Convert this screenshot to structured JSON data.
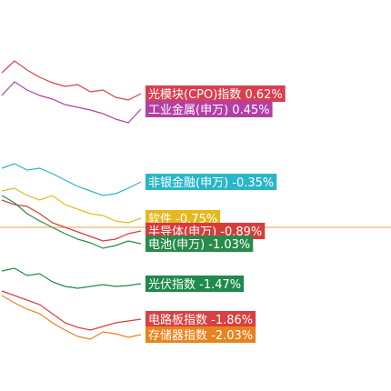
{
  "chart_data": {
    "type": "line",
    "ylim": [
      -2.65,
      1.65
    ],
    "reference_line": -0.85,
    "reference_color": "#e8a23a",
    "x": [
      0,
      1,
      2,
      3,
      4,
      5,
      6,
      7,
      8,
      9,
      10,
      11
    ],
    "series": [
      {
        "name": "光模块(CPO)指数",
        "value_labels": "0.62%",
        "color": "#d9404f",
        "values": [
          0.85,
          0.98,
          0.88,
          0.8,
          0.74,
          0.7,
          0.72,
          0.64,
          0.66,
          0.58,
          0.55,
          0.62
        ]
      },
      {
        "name": "工业金属(申万)",
        "value_labels": "0.45%",
        "color": "#b33fa6",
        "values": [
          0.6,
          0.75,
          0.66,
          0.6,
          0.56,
          0.5,
          0.47,
          0.44,
          0.4,
          0.34,
          0.3,
          0.45
        ]
      },
      {
        "name": "非银金融(申万)",
        "value_labels": "-0.35%",
        "color": "#2bb5c9",
        "values": [
          -0.2,
          -0.15,
          -0.22,
          -0.2,
          -0.26,
          -0.33,
          -0.4,
          -0.45,
          -0.5,
          -0.48,
          -0.42,
          -0.35
        ]
      },
      {
        "name": "软件",
        "value_labels": "-0.75%",
        "color": "#e6b820",
        "values": [
          -0.45,
          -0.42,
          -0.5,
          -0.55,
          -0.5,
          -0.6,
          -0.65,
          -0.7,
          -0.72,
          -0.78,
          -0.8,
          -0.75
        ]
      },
      {
        "name": "半导体(申万)",
        "value_labels": "-0.89%",
        "color": "#d63c3c",
        "values": [
          -0.55,
          -0.6,
          -0.62,
          -0.7,
          -0.8,
          -0.85,
          -0.9,
          -0.95,
          -1.0,
          -0.98,
          -0.92,
          -0.89
        ]
      },
      {
        "name": "电池(申万)",
        "value_labels": "-1.03%",
        "color": "#2a8a4a",
        "values": [
          -0.5,
          -0.58,
          -0.7,
          -0.78,
          -0.85,
          -0.92,
          -0.98,
          -1.02,
          -1.08,
          -1.05,
          -1.0,
          -1.03
        ]
      },
      {
        "name": "光伏指数",
        "value_labels": "-1.47%",
        "color": "#1f8a4c",
        "values": [
          -1.33,
          -1.3,
          -1.38,
          -1.36,
          -1.45,
          -1.5,
          -1.52,
          -1.5,
          -1.48,
          -1.5,
          -1.49,
          -1.47
        ]
      },
      {
        "name": "电路板指数",
        "value_labels": "-1.86%",
        "color": "#d94040",
        "values": [
          -1.55,
          -1.6,
          -1.65,
          -1.7,
          -1.8,
          -1.9,
          -1.95,
          -1.98,
          -1.94,
          -1.9,
          -1.88,
          -1.86
        ]
      },
      {
        "name": "存储器指数",
        "value_labels": "-2.03%",
        "color": "#e8821e",
        "values": [
          -1.6,
          -1.68,
          -1.75,
          -1.8,
          -1.9,
          -1.98,
          -2.05,
          -2.08,
          -2.0,
          -2.02,
          -2.06,
          -2.03
        ]
      }
    ]
  }
}
